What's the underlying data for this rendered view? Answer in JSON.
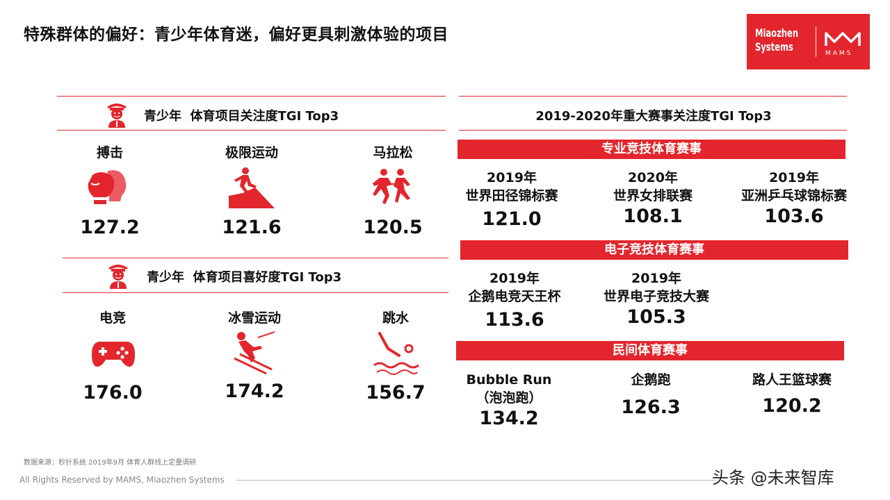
{
  "title": "特殊群体的偏好：青少年体育迷，偏好更具刺激体验的项目",
  "logo": {
    "brand_line1": "Miaozhen",
    "brand_line2": "Systems",
    "mams": "MAMS"
  },
  "left": {
    "attention": {
      "heading": "青少年  体育项目关注度TGI Top3",
      "items": [
        {
          "label": "搏击",
          "value": "127.2",
          "icon": "boxing-glove-icon"
        },
        {
          "label": "极限运动",
          "value": "121.6",
          "icon": "extreme-climb-icon"
        },
        {
          "label": "马拉松",
          "value": "120.5",
          "icon": "marathon-runners-icon"
        }
      ]
    },
    "preference": {
      "heading": "青少年  体育项目喜好度TGI Top3",
      "items": [
        {
          "label": "电竞",
          "value": "176.0",
          "icon": "gamepad-icon"
        },
        {
          "label": "冰雪运动",
          "value": "174.2",
          "icon": "skiing-icon"
        },
        {
          "label": "跳水",
          "value": "156.7",
          "icon": "diving-icon"
        }
      ]
    }
  },
  "right": {
    "heading": "2019-2020年重大赛事关注度TGI Top3",
    "groups": [
      {
        "bar": "专业竞技体育赛事",
        "events": [
          {
            "line1": "2019年",
            "line2": "世界田径锦标赛",
            "value": "121.0"
          },
          {
            "line1": "2020年",
            "line2": "世界女排联赛",
            "value": "108.1"
          },
          {
            "line1": "2019年",
            "line2": "亚洲乒乓球锦标赛",
            "value": "103.6"
          }
        ]
      },
      {
        "bar": "电子竞技体育赛事",
        "events": [
          {
            "line1": "2019年",
            "line2": "企鹅电竞天王杯",
            "value": "113.6"
          },
          {
            "line1": "2019年",
            "line2": "世界电子竞技大赛",
            "value": "105.3"
          }
        ]
      },
      {
        "bar": "民间体育赛事",
        "events": [
          {
            "line1": "Bubble Run",
            "line2": "（泡泡跑）",
            "value": "134.2"
          },
          {
            "line1": "企鹅跑",
            "line2": "",
            "value": "126.3"
          },
          {
            "line1": "路人王篮球赛",
            "line2": "",
            "value": "120.2"
          }
        ]
      }
    ]
  },
  "footer": {
    "source": "数据来源：秒针系统  2019年9月  体育人群线上定量调研",
    "rights": "All Rights Reserved by MAMS, Miaozhen Systems",
    "watermark": "头条 @未来智库"
  },
  "colors": {
    "accent": "#e3262d",
    "text": "#111111"
  }
}
